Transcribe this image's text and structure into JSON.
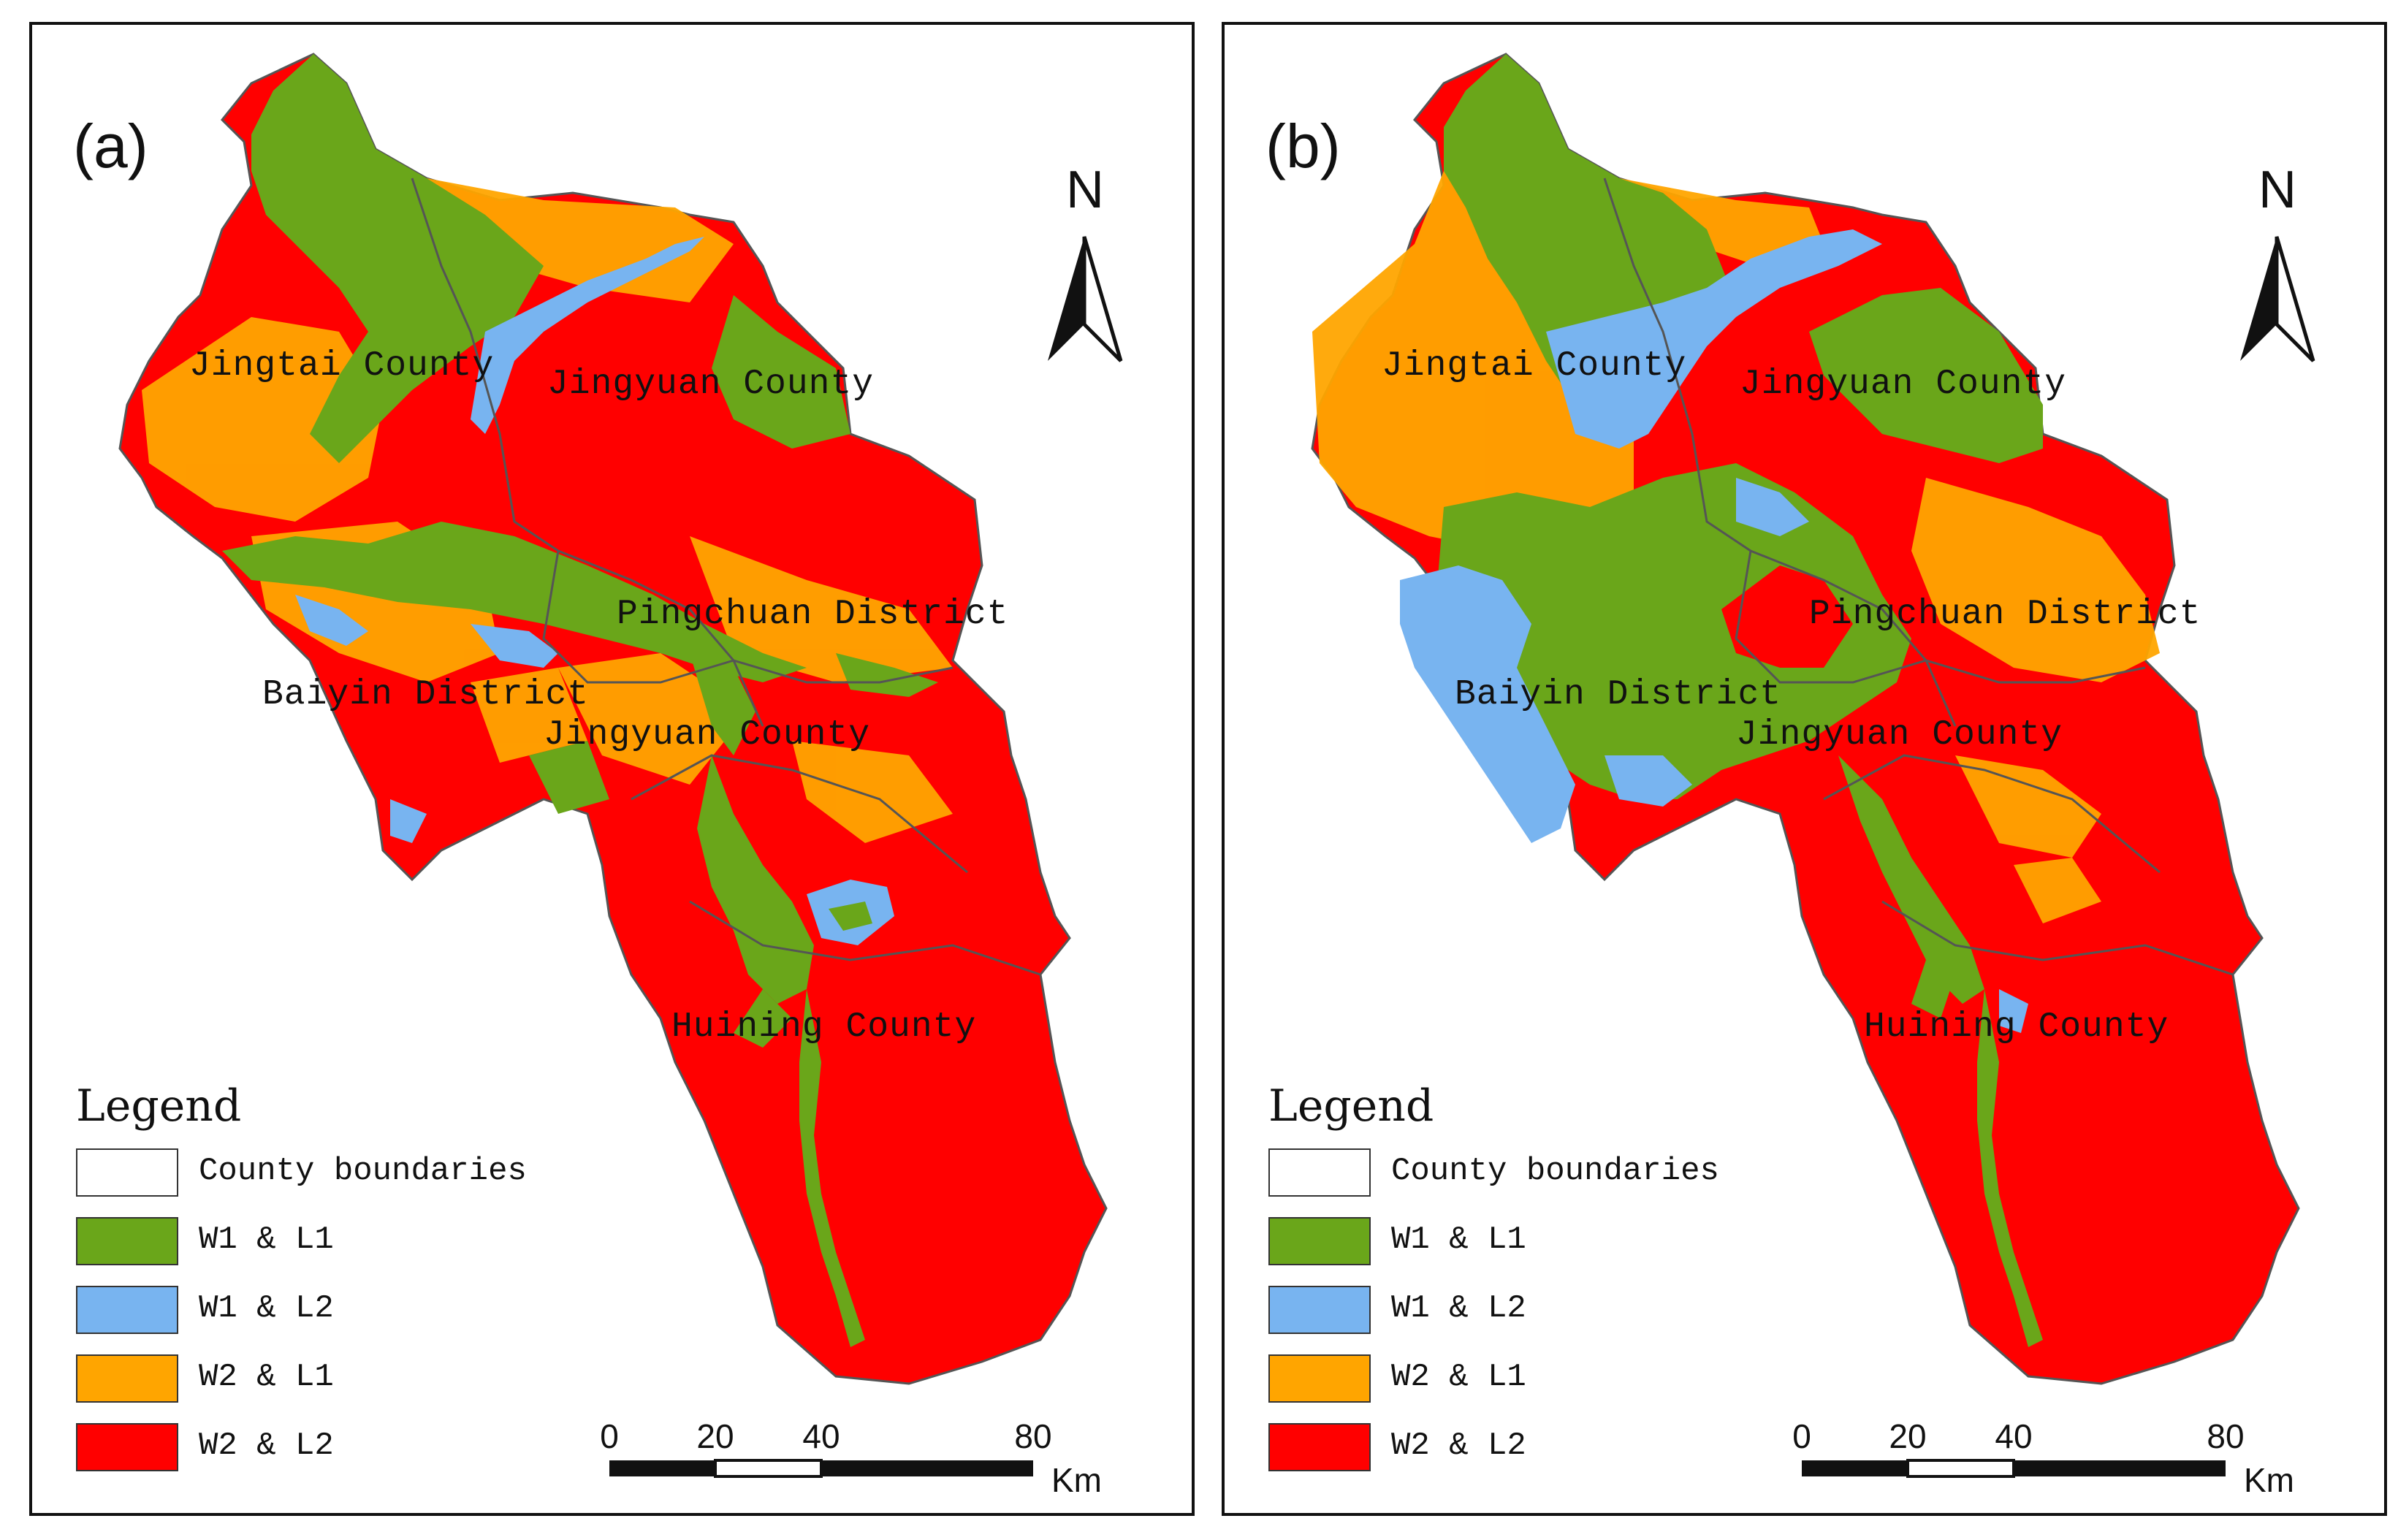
{
  "colors": {
    "w1_l1": "#6aa61a",
    "w1_l2": "#78b4f0",
    "w2_l1": "#ffa500",
    "w2_l2": "#ff0000",
    "county_boundaries": "#ffffff",
    "boundary_line": "#555555"
  },
  "panels": [
    {
      "label": "(a)",
      "places": {
        "jingtai": "Jingtai County",
        "jingyuan_north": "Jingyuan County",
        "pingchuan": "Pingchuan District",
        "baiyin": "Baiyin District",
        "jingyuan_south": "Jingyuan County",
        "huining": "Huining County"
      }
    },
    {
      "label": "(b)",
      "places": {
        "jingtai": "Jingtai County",
        "jingyuan_north": "Jingyuan County",
        "pingchuan": "Pingchuan District",
        "baiyin": "Baiyin District",
        "jingyuan_south": "Jingyuan County",
        "huining": "Huining County"
      }
    }
  ],
  "north_arrow": {
    "label": "N",
    "icon": "north-arrow-icon"
  },
  "legend": {
    "title": "Legend",
    "items": [
      {
        "label": "County boundaries",
        "color_key": "county_boundaries"
      },
      {
        "label": "W1 & L1",
        "color_key": "w1_l1"
      },
      {
        "label": "W1 & L2",
        "color_key": "w1_l2"
      },
      {
        "label": "W2 & L1",
        "color_key": "w2_l1"
      },
      {
        "label": "W2 & L2",
        "color_key": "w2_l2"
      }
    ]
  },
  "scale_bar": {
    "ticks": [
      "0",
      "20",
      "40",
      "80"
    ],
    "unit": "Km"
  }
}
